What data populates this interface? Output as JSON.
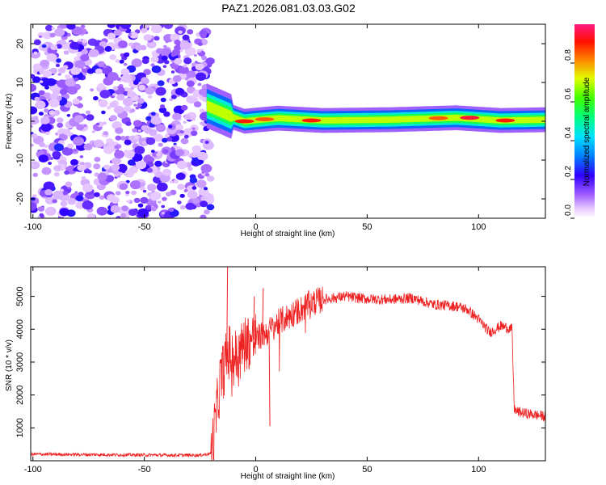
{
  "title": "PAZ1.2026.081.03.03.G02",
  "chart_data": [
    {
      "type": "heatmap",
      "name": "spectrogram",
      "xlabel": "Height of straight line (km)",
      "ylabel": "Frequency (Hz)",
      "xlim": [
        -101,
        130
      ],
      "ylim": [
        -25,
        25
      ],
      "x_ticks": [
        -100,
        -50,
        0,
        50,
        100
      ],
      "y_ticks": [
        -20,
        -10,
        0,
        10,
        20
      ],
      "noise_region_x": [
        -101,
        -20
      ],
      "signal_band": {
        "x": [
          -22,
          130
        ],
        "center_freq": [
          [
            -22,
            4
          ],
          [
            -18,
            3
          ],
          [
            -14,
            2
          ],
          [
            -10,
            1
          ],
          [
            -5,
            0
          ],
          [
            0,
            0.3
          ],
          [
            10,
            0.8
          ],
          [
            30,
            0.2
          ],
          [
            60,
            0.4
          ],
          [
            90,
            0.9
          ],
          [
            110,
            0.2
          ],
          [
            130,
            0.4
          ]
        ],
        "peaks": [
          {
            "x": -5,
            "f": 0,
            "amp": 0.9
          },
          {
            "x": 4,
            "f": 0.5,
            "amp": 0.85
          },
          {
            "x": 25,
            "f": 0.2,
            "amp": 0.9
          },
          {
            "x": 82,
            "f": 0.8,
            "amp": 0.85
          },
          {
            "x": 96,
            "f": 0.9,
            "amp": 0.95
          },
          {
            "x": 112,
            "f": 0.2,
            "amp": 0.9
          }
        ]
      },
      "colorbar": {
        "label": "Normalized spectral amplitude",
        "range": [
          0,
          1
        ],
        "ticks": [
          "0.0",
          "0.2",
          "0.4",
          "0.6",
          "0.8"
        ]
      }
    },
    {
      "type": "line",
      "name": "snr",
      "xlabel": "Height of straight line (km)",
      "ylabel": "SNR (10 * v/v)",
      "xlim": [
        -101,
        130
      ],
      "ylim": [
        0,
        5900
      ],
      "x_ticks": [
        -100,
        -50,
        0,
        50,
        100
      ],
      "y_ticks": [
        1000,
        2000,
        3000,
        4000,
        5000
      ],
      "series": [
        {
          "name": "SNR",
          "color": "#ee2222",
          "x": [
            -101,
            -80,
            -60,
            -40,
            -25,
            -20,
            -18,
            -16,
            -14,
            -12,
            -10,
            -8,
            -5,
            0,
            5,
            10,
            15,
            20,
            25,
            30,
            35,
            40,
            50,
            60,
            70,
            75,
            80,
            90,
            95,
            100,
            105,
            110,
            115,
            116,
            117,
            120,
            125,
            130
          ],
          "values": [
            200,
            190,
            180,
            170,
            170,
            220,
            1200,
            2400,
            2900,
            3300,
            3200,
            3100,
            3600,
            3700,
            3900,
            4200,
            4400,
            4600,
            4800,
            4900,
            4950,
            5000,
            4920,
            4900,
            4950,
            4850,
            4750,
            4700,
            4600,
            4300,
            3900,
            4100,
            4000,
            1600,
            1500,
            1450,
            1400,
            1350
          ]
        }
      ],
      "spikes": [
        {
          "x": -13,
          "value": 5900
        },
        {
          "x": 3,
          "value": 5250
        },
        {
          "x": 6,
          "value": 1050
        },
        {
          "x": -1,
          "value": 5000
        }
      ]
    }
  ]
}
